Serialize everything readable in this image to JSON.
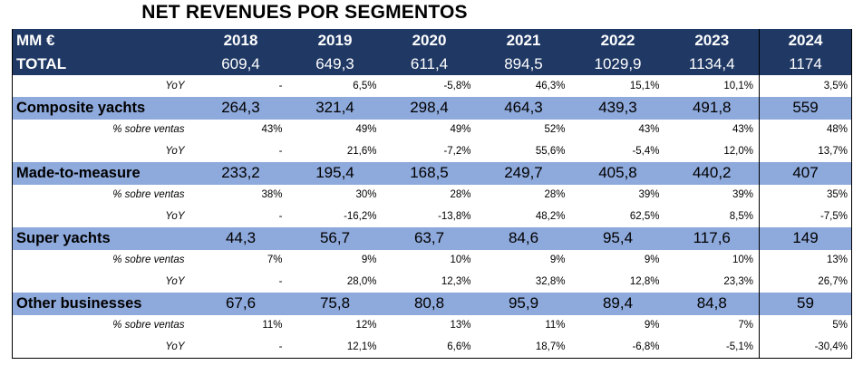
{
  "title": "NET REVENUES POR SEGMENTOS",
  "header": {
    "label": "MM €",
    "years": [
      "2018",
      "2019",
      "2020",
      "2021",
      "2022",
      "2023",
      "2024"
    ]
  },
  "total": {
    "label": "TOTAL",
    "values": [
      "609,4",
      "649,3",
      "611,4",
      "894,5",
      "1029,9",
      "1134,4",
      "1174"
    ],
    "yoy_label": "YoY",
    "yoy": [
      "-",
      "6,5%",
      "-5,8%",
      "46,3%",
      "15,1%",
      "10,1%",
      "3,5%"
    ]
  },
  "segments": [
    {
      "label": "Composite yachts",
      "values": [
        "264,3",
        "321,4",
        "298,4",
        "464,3",
        "439,3",
        "491,8",
        "559"
      ],
      "share_label": "% sobre ventas",
      "share": [
        "43%",
        "49%",
        "49%",
        "52%",
        "43%",
        "43%",
        "48%"
      ],
      "yoy_label": "YoY",
      "yoy": [
        "-",
        "21,6%",
        "-7,2%",
        "55,6%",
        "-5,4%",
        "12,0%",
        "13,7%"
      ]
    },
    {
      "label": "Made-to-measure",
      "values": [
        "233,2",
        "195,4",
        "168,5",
        "249,7",
        "405,8",
        "440,2",
        "407"
      ],
      "share_label": "% sobre ventas",
      "share": [
        "38%",
        "30%",
        "28%",
        "28%",
        "39%",
        "39%",
        "35%"
      ],
      "yoy_label": "YoY",
      "yoy": [
        "-",
        "-16,2%",
        "-13,8%",
        "48,2%",
        "62,5%",
        "8,5%",
        "-7,5%"
      ]
    },
    {
      "label": "Super yachts",
      "values": [
        "44,3",
        "56,7",
        "63,7",
        "84,6",
        "95,4",
        "117,6",
        "149"
      ],
      "share_label": "% sobre ventas",
      "share": [
        "7%",
        "9%",
        "10%",
        "9%",
        "9%",
        "10%",
        "13%"
      ],
      "yoy_label": "YoY",
      "yoy": [
        "-",
        "28,0%",
        "12,3%",
        "32,8%",
        "12,8%",
        "23,3%",
        "26,7%"
      ]
    },
    {
      "label": "Other businesses",
      "values": [
        "67,6",
        "75,8",
        "80,8",
        "95,9",
        "89,4",
        "84,8",
        "59"
      ],
      "share_label": "% sobre ventas",
      "share": [
        "11%",
        "12%",
        "13%",
        "11%",
        "9%",
        "7%",
        "5%"
      ],
      "yoy_label": "YoY",
      "yoy": [
        "-",
        "12,1%",
        "6,6%",
        "18,7%",
        "-6,8%",
        "-5,1%",
        "-30,4%"
      ]
    }
  ]
}
